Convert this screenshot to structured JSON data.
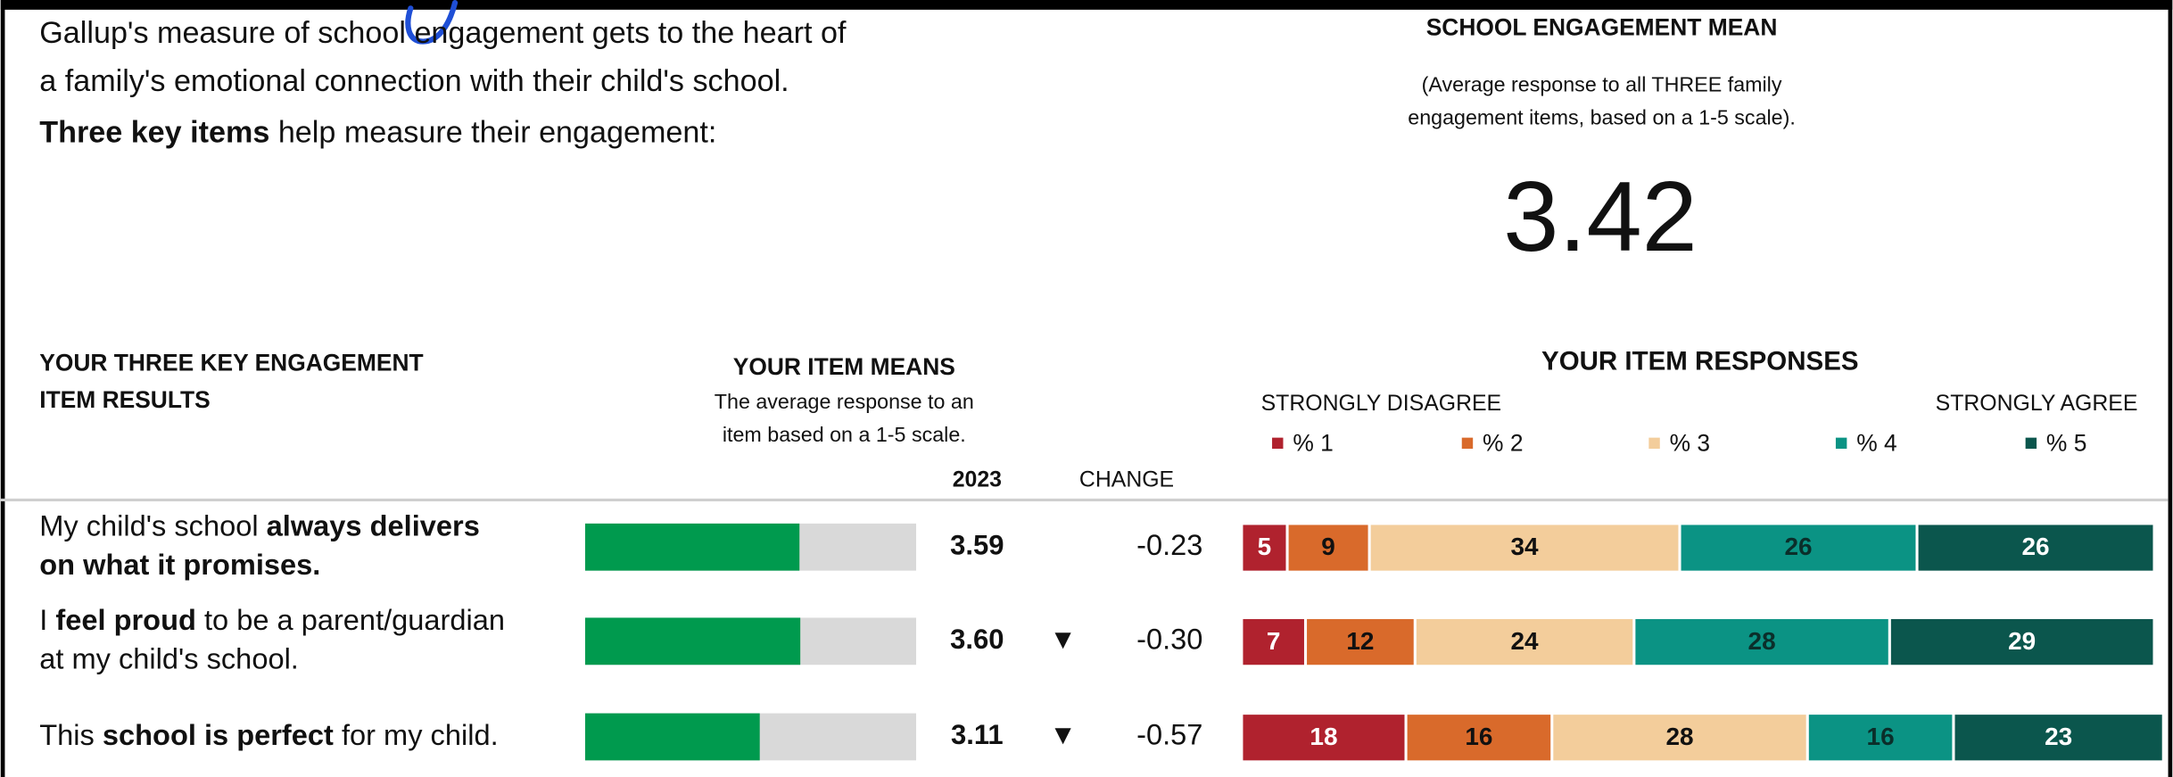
{
  "intro": {
    "lines": [
      [
        {
          "text": "Gallup's measure of school engagement gets to the heart of",
          "bold": false
        }
      ],
      [
        {
          "text": "a family's emotional connection with their child's school.",
          "bold": false
        }
      ],
      [
        {
          "text": "Three key items",
          "bold": true
        },
        {
          "text": " help measure their engagement:",
          "bold": false
        }
      ]
    ]
  },
  "engagement_mean": {
    "title": "SCHOOL ENGAGEMENT MEAN",
    "subtitle_lines": [
      "(Average response to all THREE family",
      "engagement items, based on a 1-5 scale)."
    ],
    "value": "3.42"
  },
  "results": {
    "heading_lines": [
      "YOUR THREE KEY ENGAGEMENT",
      "ITEM RESULTS"
    ],
    "means_heading": "YOUR ITEM MEANS",
    "means_note_lines": [
      "The average response to an",
      "item based on a 1-5 scale."
    ],
    "year_label": "2023",
    "change_label": "CHANGE",
    "mean_scale": [
      1,
      5
    ],
    "responses_heading": "YOUR ITEM RESPONSES",
    "left_anchor": "STRONGLY DISAGREE",
    "right_anchor": "STRONGLY AGREE",
    "response_scale": [
      0,
      100
    ],
    "series": [
      {
        "name": "% 1",
        "color": "#b0222e",
        "text_color": "#ffffff"
      },
      {
        "name": "% 2",
        "color": "#d96a2b",
        "text_color": "#111111"
      },
      {
        "name": "% 3",
        "color": "#f3cd9b",
        "text_color": "#111111"
      },
      {
        "name": "% 4",
        "color": "#0b9384",
        "text_color": "#0b2e2a"
      },
      {
        "name": "% 5",
        "color": "#0b564d",
        "text_color": "#ffffff"
      }
    ],
    "mean_color": "#009a4e",
    "mean_track_color": "#d9d9d9",
    "items": [
      {
        "lines": [
          [
            {
              "text": "My child's school ",
              "bold": false
            },
            {
              "text": "always delivers",
              "bold": true
            }
          ],
          [
            {
              "text": "on what it promises.",
              "bold": true
            }
          ]
        ],
        "mean": 3.59,
        "mean_label": "3.59",
        "change": "-0.23",
        "responses": [
          5,
          9,
          34,
          26,
          26
        ]
      },
      {
        "lines": [
          [
            {
              "text": "I ",
              "bold": false
            },
            {
              "text": "feel proud",
              "bold": true
            },
            {
              "text": " to be a parent/guardian",
              "bold": false
            }
          ],
          [
            {
              "text": "at my child's school.",
              "bold": false
            }
          ]
        ],
        "mean": 3.6,
        "mean_label": "3.60",
        "arrow": "▼",
        "change": "-0.30",
        "responses": [
          7,
          12,
          24,
          28,
          29
        ]
      },
      {
        "lines": [
          [
            {
              "text": "This ",
              "bold": false
            },
            {
              "text": "school is perfect",
              "bold": true
            },
            {
              "text": " for my child.",
              "bold": false
            }
          ]
        ],
        "mean": 3.11,
        "mean_label": "3.11",
        "arrow": "▼",
        "change": "-0.57",
        "responses": [
          18,
          16,
          28,
          16,
          23
        ]
      }
    ]
  }
}
